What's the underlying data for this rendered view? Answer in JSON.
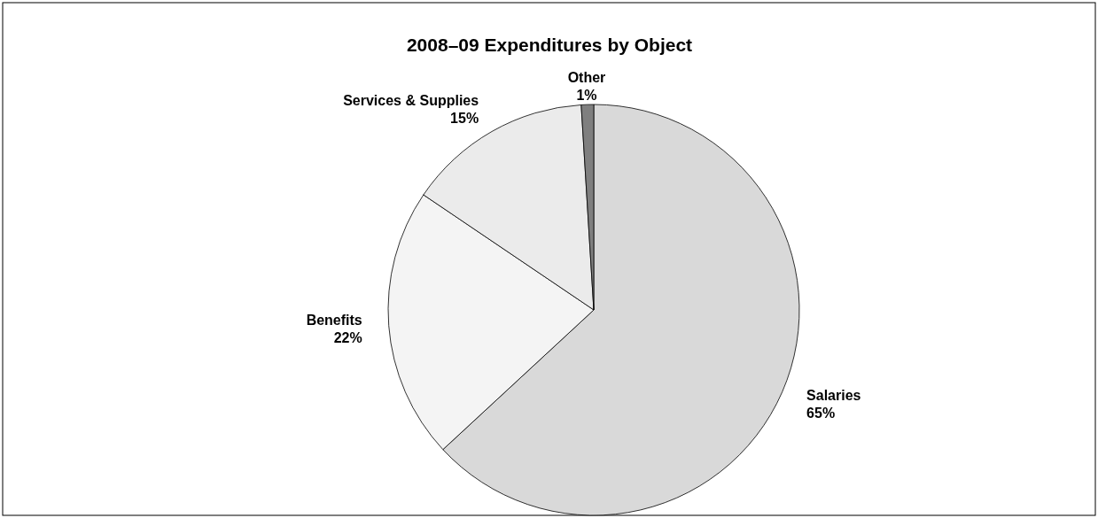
{
  "chart_data": {
    "type": "pie",
    "title": "2008–09 Expenditures by Object",
    "categories": [
      "Salaries",
      "Benefits",
      "Services & Supplies",
      "Other"
    ],
    "values": [
      65,
      22,
      15,
      1
    ],
    "value_labels": [
      "65%",
      "22%",
      "15%",
      "1%"
    ],
    "colors": [
      "#d9d9d9",
      "#f4f4f4",
      "#ebebeb",
      "#7f7f7f"
    ],
    "legend": false
  }
}
